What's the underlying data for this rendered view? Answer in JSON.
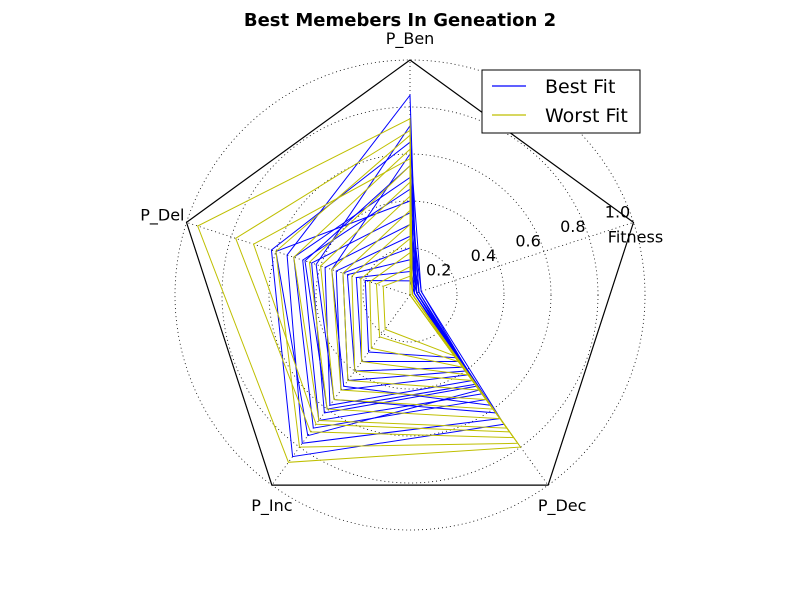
{
  "chart_data": {
    "type": "radar",
    "title": "Best Memebers In Geneation 2",
    "axes": [
      "Fitness",
      "P_Ben",
      "P_Del",
      "P_Inc",
      "P_Dec"
    ],
    "radial_ticks": [
      "0.2",
      "0.4",
      "0.6",
      "0.8",
      "1.0"
    ],
    "rlim": [
      0,
      1.0
    ],
    "grid": true,
    "legend": {
      "position": "top-right",
      "entries": [
        "Best Fit",
        "Worst Fit"
      ]
    },
    "colors": {
      "Best Fit": "#0000ff",
      "Worst Fit": "#bfbf00",
      "frame": "#000000",
      "grid": "#000000"
    },
    "series": [
      {
        "name": "Best Fit",
        "members": [
          [
            0.03,
            0.85,
            0.55,
            0.78,
            0.65
          ],
          [
            0.03,
            0.72,
            0.42,
            0.55,
            0.62
          ],
          [
            0.02,
            0.6,
            0.35,
            0.48,
            0.58
          ],
          [
            0.04,
            0.5,
            0.52,
            0.7,
            0.55
          ],
          [
            0.03,
            0.45,
            0.48,
            0.66,
            0.52
          ],
          [
            0.05,
            0.4,
            0.6,
            0.74,
            0.5
          ],
          [
            0.02,
            0.35,
            0.44,
            0.62,
            0.48
          ],
          [
            0.03,
            0.3,
            0.38,
            0.58,
            0.45
          ],
          [
            0.04,
            0.25,
            0.33,
            0.5,
            0.42
          ],
          [
            0.03,
            0.2,
            0.3,
            0.45,
            0.4
          ],
          [
            0.02,
            0.15,
            0.28,
            0.4,
            0.38
          ],
          [
            0.03,
            0.1,
            0.24,
            0.35,
            0.35
          ],
          [
            0.02,
            0.06,
            0.2,
            0.3,
            0.33
          ],
          [
            0.05,
            0.65,
            0.62,
            0.85,
            0.68
          ],
          [
            0.04,
            0.55,
            0.47,
            0.6,
            0.47
          ]
        ]
      },
      {
        "name": "Worst Fit",
        "members": [
          [
            0.01,
            0.75,
            0.95,
            0.88,
            0.8
          ],
          [
            0.01,
            0.7,
            0.78,
            0.72,
            0.75
          ],
          [
            0.01,
            0.62,
            0.52,
            0.66,
            0.7
          ],
          [
            0.0,
            0.55,
            0.45,
            0.6,
            0.65
          ],
          [
            0.01,
            0.48,
            0.4,
            0.55,
            0.6
          ],
          [
            0.0,
            0.42,
            0.35,
            0.5,
            0.55
          ],
          [
            0.01,
            0.36,
            0.3,
            0.45,
            0.5
          ],
          [
            0.0,
            0.3,
            0.26,
            0.4,
            0.45
          ],
          [
            0.01,
            0.24,
            0.22,
            0.35,
            0.42
          ],
          [
            0.0,
            0.18,
            0.18,
            0.28,
            0.38
          ],
          [
            0.01,
            0.12,
            0.15,
            0.22,
            0.35
          ],
          [
            0.0,
            0.08,
            0.12,
            0.18,
            0.32
          ],
          [
            0.01,
            0.68,
            0.6,
            0.8,
            0.78
          ],
          [
            0.01,
            0.58,
            0.7,
            0.68,
            0.72
          ]
        ]
      }
    ]
  }
}
